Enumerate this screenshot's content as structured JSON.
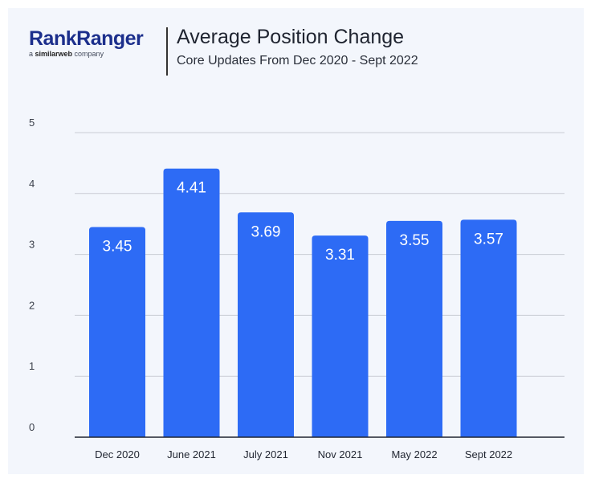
{
  "brand": {
    "name_part1": "Rank",
    "name_part2": "Ranger",
    "tagline_prefix": "a ",
    "tagline_brand": "similarweb",
    "tagline_suffix": " company"
  },
  "colors": {
    "bar": "#2d6bf5",
    "brand": "#1c2f8c",
    "background": "#f3f6fc",
    "grid": "#c9ccd4"
  },
  "chart_data": {
    "type": "bar",
    "title": "Average Position Change",
    "subtitle": "Core Updates From Dec 2020 - Sept 2022",
    "categories": [
      "Dec 2020",
      "June 2021",
      "July 2021",
      "Nov 2021",
      "May 2022",
      "Sept 2022"
    ],
    "values": [
      3.45,
      4.41,
      3.69,
      3.31,
      3.55,
      3.57
    ],
    "value_labels": [
      "3.45",
      "4.41",
      "3.69",
      "3.31",
      "3.55",
      "3.57"
    ],
    "xlabel": "",
    "ylabel": "",
    "ylim": [
      0,
      5
    ],
    "yticks": [
      0,
      1,
      2,
      3,
      4,
      5
    ],
    "grid": true
  }
}
